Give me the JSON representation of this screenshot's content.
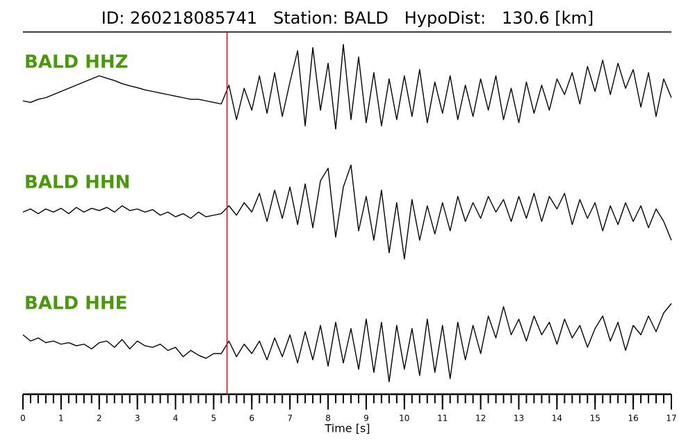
{
  "chart_data": {
    "type": "seismogram",
    "title": "ID: 260218085741   Station: BALD   HypoDist:   130.6 [km]",
    "xlabel": "Time [s]",
    "xlim": [
      0,
      17
    ],
    "xticks": [
      0,
      1,
      2,
      3,
      4,
      5,
      6,
      7,
      8,
      9,
      10,
      11,
      12,
      13,
      14,
      15,
      16,
      17
    ],
    "label_color": "#4a990a",
    "pick_time": 5.35,
    "pick_color": "#ff0000",
    "x": [
      0,
      0.2,
      0.4,
      0.6,
      0.8,
      1,
      1.2,
      1.4,
      1.6,
      1.8,
      2,
      2.2,
      2.4,
      2.6,
      2.8,
      3,
      3.2,
      3.4,
      3.6,
      3.8,
      4,
      4.2,
      4.4,
      4.6,
      4.8,
      5,
      5.2,
      5.4,
      5.6,
      5.8,
      6,
      6.2,
      6.4,
      6.6,
      6.8,
      7,
      7.2,
      7.4,
      7.6,
      7.8,
      8,
      8.2,
      8.4,
      8.6,
      8.8,
      9,
      9.2,
      9.4,
      9.6,
      9.8,
      10,
      10.2,
      10.4,
      10.6,
      10.8,
      11,
      11.2,
      11.4,
      11.6,
      11.8,
      12,
      12.2,
      12.4,
      12.6,
      12.8,
      13,
      13.2,
      13.4,
      13.6,
      13.8,
      14,
      14.2,
      14.4,
      14.6,
      14.8,
      15,
      15.2,
      15.4,
      15.6,
      15.8,
      16,
      16.2,
      16.4,
      16.6,
      16.8,
      17
    ],
    "series": [
      {
        "name": "BALD HHZ",
        "color": "#000000",
        "values": [
          0.0,
          -0.05,
          0.05,
          0.1,
          0.2,
          0.3,
          0.4,
          0.5,
          0.6,
          0.7,
          0.8,
          0.72,
          0.65,
          0.55,
          0.48,
          0.42,
          0.35,
          0.3,
          0.25,
          0.2,
          0.15,
          0.1,
          0.05,
          0.05,
          0.0,
          -0.05,
          -0.1,
          0.5,
          -0.6,
          0.4,
          -0.3,
          0.8,
          -0.4,
          0.9,
          -0.5,
          0.6,
          1.6,
          -0.8,
          1.7,
          -0.3,
          1.2,
          -0.9,
          1.8,
          -0.6,
          1.4,
          -0.7,
          0.9,
          -0.8,
          0.7,
          -0.6,
          0.8,
          -0.5,
          1.0,
          -0.7,
          0.6,
          -0.4,
          0.8,
          -0.6,
          0.5,
          -0.5,
          0.7,
          -0.3,
          0.8,
          -0.6,
          0.4,
          -0.7,
          0.6,
          -0.4,
          0.5,
          -0.3,
          0.7,
          0.2,
          0.9,
          -0.1,
          1.1,
          0.3,
          1.3,
          0.2,
          1.2,
          0.4,
          1.0,
          -0.2,
          0.9,
          -0.5,
          0.7,
          0.1
        ]
      },
      {
        "name": "BALD HHN",
        "color": "#000000",
        "values": [
          0.0,
          0.1,
          -0.05,
          0.1,
          0.0,
          0.12,
          -0.05,
          0.15,
          0.0,
          0.12,
          0.05,
          0.15,
          0.0,
          0.2,
          0.05,
          0.1,
          0.0,
          0.08,
          -0.1,
          0.0,
          -0.15,
          -0.05,
          -0.2,
          0.0,
          -0.15,
          -0.1,
          -0.05,
          0.2,
          -0.1,
          0.3,
          0.0,
          0.6,
          -0.3,
          0.7,
          -0.2,
          0.8,
          -0.4,
          0.9,
          -0.5,
          1.0,
          1.4,
          -0.8,
          0.8,
          1.5,
          -0.6,
          0.5,
          -0.9,
          0.7,
          -1.3,
          0.3,
          -1.5,
          0.4,
          -0.9,
          0.2,
          -0.7,
          0.3,
          -0.6,
          0.5,
          -0.3,
          0.3,
          -0.2,
          0.5,
          0.0,
          0.4,
          -0.3,
          0.5,
          -0.2,
          0.6,
          -0.3,
          0.5,
          0.1,
          0.6,
          -0.4,
          0.4,
          -0.2,
          0.3,
          -0.6,
          0.2,
          -0.4,
          0.3,
          -0.3,
          0.2,
          -0.5,
          0.1,
          -0.3,
          -0.9
        ]
      },
      {
        "name": "BALD HHE",
        "color": "#000000",
        "values": [
          0.3,
          0.1,
          0.2,
          0.05,
          0.1,
          0.0,
          0.05,
          -0.05,
          0.0,
          -0.15,
          0.05,
          0.1,
          -0.1,
          0.15,
          -0.15,
          0.1,
          -0.05,
          -0.1,
          0.0,
          -0.2,
          -0.1,
          -0.4,
          -0.2,
          -0.35,
          -0.45,
          -0.3,
          -0.3,
          0.1,
          -0.4,
          0.0,
          -0.3,
          0.1,
          -0.5,
          0.2,
          -0.4,
          0.3,
          -0.6,
          0.4,
          -0.5,
          0.6,
          -0.7,
          0.7,
          -0.6,
          0.5,
          -0.8,
          0.8,
          -0.9,
          0.7,
          -1.2,
          0.6,
          -0.8,
          0.5,
          -1.0,
          0.8,
          -0.9,
          0.6,
          -1.1,
          0.7,
          -0.5,
          0.6,
          -0.3,
          0.9,
          0.2,
          1.2,
          0.3,
          0.8,
          0.1,
          0.9,
          0.3,
          0.7,
          0.0,
          0.8,
          0.2,
          0.6,
          -0.1,
          0.5,
          0.9,
          0.1,
          0.7,
          -0.2,
          0.6,
          0.3,
          0.9,
          0.4,
          1.0,
          1.3
        ]
      }
    ]
  }
}
